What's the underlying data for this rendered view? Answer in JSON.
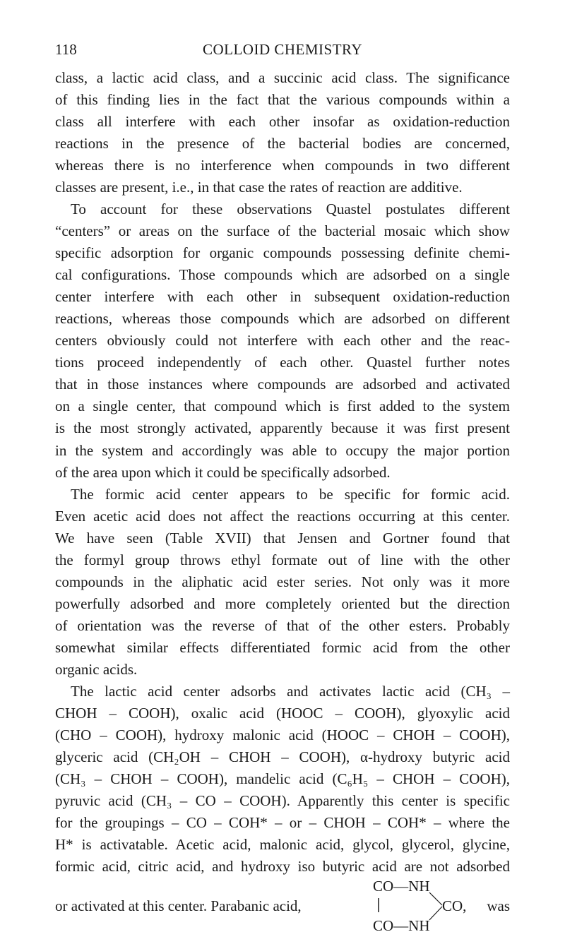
{
  "header": {
    "page_number": "118",
    "title": "COLLOID CHEMISTRY"
  },
  "paragraphs": [
    {
      "lines": [
        "class, a lactic acid class, and a succinic acid class. The significance",
        "of this finding lies in the fact that the various compounds within a",
        "class all interfere with each other insofar as oxidation-reduction",
        "reactions in the presence of the bacterial bodies are concerned,",
        "whereas there is no interference when compounds in two different",
        "classes are present, i.e., in that case the rates of reaction are additive."
      ]
    },
    {
      "lines": [
        "To account for these observations Quastel postulates different",
        "“centers” or areas on the surface of the bacterial mosaic which show",
        "specific adsorption for organic compounds possessing definite chemi-",
        "cal configurations. Those compounds which are adsorbed on a single",
        "center interfere with each other in subsequent oxidation-reduction",
        "reactions, whereas those compounds which are adsorbed on different",
        "centers obviously could not interfere with each other and the reac-",
        "tions proceed independently of each other. Quastel further notes",
        "that in those instances where compounds are adsorbed and activated",
        "on a single center, that compound which is first added to the system",
        "is the most strongly activated, apparently because it was first present",
        "in the system and accordingly was able to occupy the major portion",
        "of the area upon which it could be specifically adsorbed."
      ]
    },
    {
      "lines": [
        "The formic acid center appears to be specific for formic acid.",
        "Even acetic acid does not affect the reactions occurring at this center.",
        "We have seen (Table XVII) that Jensen and Gortner found that",
        "the formyl group throws ethyl formate out of line with the other",
        "compounds in the aliphatic acid ester series. Not only was it more",
        "powerfully adsorbed and more completely oriented but the direction",
        "of orientation was the reverse of that of the other esters. Probably",
        "somewhat similar effects differentiated formic acid from the other",
        "organic acids."
      ]
    },
    {
      "lines": [
        "The lactic acid center adsorbs and activates lactic acid (CH₃ –",
        "CHOH – COOH), oxalic acid (HOOC – COOH), glyoxylic acid",
        "(CHO – COOH), hydroxy malonic acid (HOOC – CHOH – COOH),",
        "glyceric acid (CH₂OH – CHOH – COOH), α-hydroxy butyric acid",
        "(CH₃ – CHOH – COOH), mandelic acid (C₆H₅ – CHOH – COOH),",
        "pyruvic acid (CH₃ – CO – COOH). Apparently this center is specific",
        "for the groupings – CO – COH* – or – CHOH – COH* – where the",
        "H* is activatable. Acetic acid, malonic acid, glycol, glycerol, glycine,",
        "formic acid, citric acid, and hydroxy iso butyric acid are not adsorbed"
      ]
    }
  ],
  "tail": {
    "text_before": "or activated at this center. Parabanic acid,",
    "formula": {
      "top": "CO—NH",
      "middle": "CO,",
      "bottom": "CO—NH"
    },
    "text_after": "was"
  }
}
